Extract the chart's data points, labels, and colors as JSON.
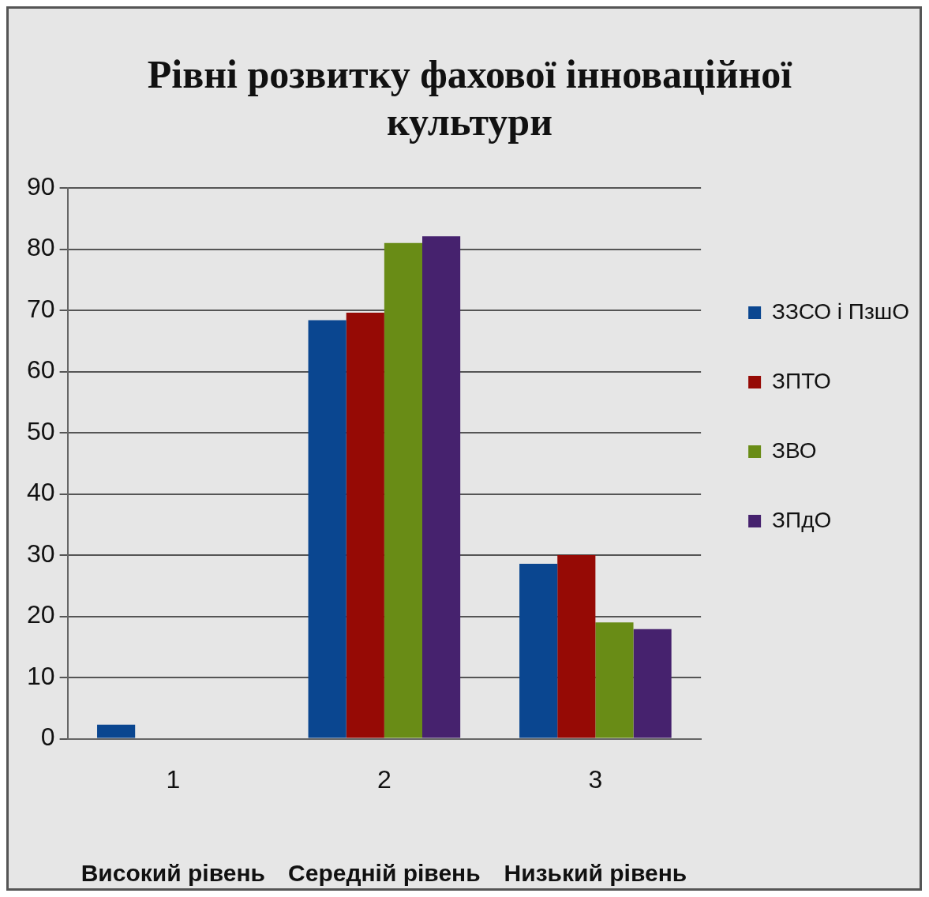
{
  "chart_data": {
    "type": "bar",
    "title": "Рівні розвитку фахової інноваційної культури",
    "categories": [
      "1",
      "2",
      "3"
    ],
    "series": [
      {
        "name": "ЗЗСО і ПзшО",
        "color": "#0a4690",
        "values": [
          2.3,
          68.4,
          28.6
        ]
      },
      {
        "name": "ЗПТО",
        "color": "#960a05",
        "values": [
          0,
          69.6,
          30.0
        ]
      },
      {
        "name": "ЗВО",
        "color": "#698c16",
        "values": [
          0,
          81.0,
          19.0
        ]
      },
      {
        "name": "ЗПдО",
        "color": "#46226e",
        "values": [
          0,
          82.1,
          17.9
        ]
      }
    ],
    "ylim": [
      0,
      90
    ],
    "yticks": [
      0,
      10,
      20,
      30,
      40,
      50,
      60,
      70,
      80,
      90
    ],
    "grid": "y",
    "legend": "right",
    "annotations": [
      "Високий рівень",
      "Середній рівень",
      "Низький рівень"
    ]
  }
}
